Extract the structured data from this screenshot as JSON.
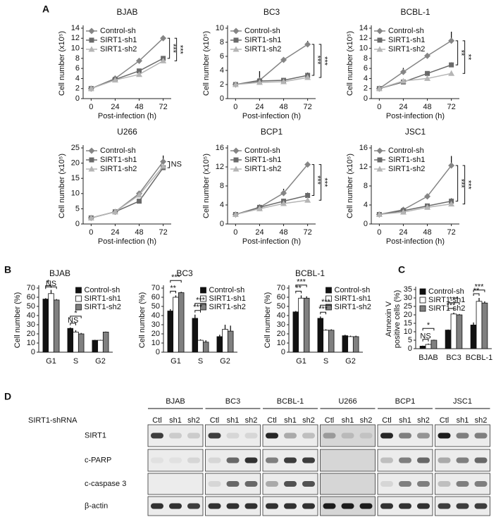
{
  "panel_labels": [
    "A",
    "B",
    "C",
    "D"
  ],
  "chart_data": [
    {
      "type": "line",
      "title": "BJAB",
      "xlabel": "Post-infection (h)",
      "ylabel": "Cell number (x10⁵)",
      "x": [
        0,
        24,
        48,
        72
      ],
      "xlim": [
        -8,
        80
      ],
      "xticks": [
        0,
        24,
        48,
        72
      ],
      "ylim": [
        0,
        14
      ],
      "yticks": [
        0,
        2,
        4,
        6,
        8,
        10,
        12,
        14
      ],
      "series": [
        {
          "name": "Control-sh",
          "color": "#858585",
          "marker": "diamond",
          "values": [
            2,
            4,
            7.5,
            12
          ],
          "errors": [
            0.1,
            0.4,
            0.3,
            0.4
          ]
        },
        {
          "name": "SIRT1-sh1",
          "color": "#6a6a6a",
          "marker": "square",
          "values": [
            2,
            3.8,
            5.5,
            8
          ],
          "errors": [
            0.1,
            0.3,
            0.4,
            0.3
          ]
        },
        {
          "name": "SIRT1-sh2",
          "color": "#b5b5b5",
          "marker": "triangle",
          "values": [
            2,
            3.7,
            4.8,
            7.5
          ],
          "errors": [
            0.1,
            0.2,
            0.3,
            0.3
          ]
        }
      ],
      "annotations": [
        "***",
        "***"
      ]
    },
    {
      "type": "line",
      "title": "BC3",
      "xlabel": "Post-infection (h)",
      "ylabel": "Cell number (x10⁵)",
      "x": [
        0,
        24,
        48,
        72
      ],
      "xlim": [
        -8,
        80
      ],
      "xticks": [
        0,
        24,
        48,
        72
      ],
      "ylim": [
        0,
        10
      ],
      "yticks": [
        0,
        2,
        4,
        6,
        8,
        10
      ],
      "series": [
        {
          "name": "Control-sh",
          "color": "#858585",
          "marker": "diamond",
          "values": [
            2,
            2.6,
            5.5,
            7.7
          ],
          "errors": [
            0.1,
            1.3,
            0.3,
            0.5
          ]
        },
        {
          "name": "SIRT1-sh1",
          "color": "#6a6a6a",
          "marker": "square",
          "values": [
            2,
            2.5,
            2.6,
            3.3
          ],
          "errors": [
            0.1,
            0.3,
            0.2,
            0.4
          ]
        },
        {
          "name": "SIRT1-sh2",
          "color": "#b5b5b5",
          "marker": "triangle",
          "values": [
            2,
            2.3,
            2.4,
            3
          ],
          "errors": [
            0.1,
            0.2,
            0.2,
            0.3
          ]
        }
      ],
      "annotations": [
        "***",
        "***"
      ]
    },
    {
      "type": "line",
      "title": "BCBL-1",
      "xlabel": "Post-infection (h)",
      "ylabel": "Cell number (x10⁵)",
      "x": [
        0,
        24,
        48,
        72
      ],
      "xlim": [
        -8,
        80
      ],
      "xticks": [
        0,
        24,
        48,
        72
      ],
      "ylim": [
        0,
        14
      ],
      "yticks": [
        0,
        2,
        4,
        6,
        8,
        10,
        12,
        14
      ],
      "series": [
        {
          "name": "Control-sh",
          "color": "#858585",
          "marker": "diamond",
          "values": [
            2,
            5.3,
            8.5,
            11.5
          ],
          "errors": [
            0.1,
            0.8,
            0.5,
            1.8
          ]
        },
        {
          "name": "SIRT1-sh1",
          "color": "#6a6a6a",
          "marker": "square",
          "values": [
            2,
            3.3,
            5,
            6.7
          ],
          "errors": [
            0.1,
            0.3,
            0.4,
            0.5
          ]
        },
        {
          "name": "SIRT1-sh2",
          "color": "#b5b5b5",
          "marker": "triangle",
          "values": [
            2,
            3.5,
            4,
            5
          ],
          "errors": [
            0.1,
            0.3,
            0.3,
            0.5
          ]
        }
      ],
      "annotations": [
        "**",
        "**"
      ]
    },
    {
      "type": "line",
      "title": "U266",
      "xlabel": "Post-infection (h)",
      "ylabel": "Cell number (x10⁵)",
      "x": [
        0,
        24,
        48,
        72
      ],
      "xlim": [
        -8,
        80
      ],
      "xticks": [
        0,
        24,
        48,
        72
      ],
      "ylim": [
        0,
        25
      ],
      "yticks": [
        0,
        5,
        10,
        15,
        20,
        25
      ],
      "series": [
        {
          "name": "Control-sh",
          "color": "#858585",
          "marker": "diamond",
          "values": [
            2,
            4,
            10,
            20.5
          ],
          "errors": [
            0.2,
            0.8,
            0.6,
            2
          ]
        },
        {
          "name": "SIRT1-sh1",
          "color": "#6a6a6a",
          "marker": "square",
          "values": [
            2,
            4,
            7.5,
            18.5
          ],
          "errors": [
            0.2,
            0.4,
            0.5,
            1
          ]
        },
        {
          "name": "SIRT1-sh2",
          "color": "#b5b5b5",
          "marker": "triangle",
          "values": [
            2,
            4,
            9.5,
            19
          ],
          "errors": [
            0.2,
            0.4,
            0.5,
            1
          ]
        }
      ],
      "annotations": [
        "NS"
      ]
    },
    {
      "type": "line",
      "title": "BCP1",
      "xlabel": "Post-infection (h)",
      "ylabel": "Cell number (x10⁵)",
      "x": [
        0,
        24,
        48,
        72
      ],
      "xlim": [
        -8,
        80
      ],
      "xticks": [
        0,
        24,
        48,
        72
      ],
      "ylim": [
        0,
        16
      ],
      "yticks": [
        0,
        4,
        8,
        12,
        16
      ],
      "series": [
        {
          "name": "Control-sh",
          "color": "#858585",
          "marker": "diamond",
          "values": [
            2,
            3.5,
            6.5,
            12.5
          ],
          "errors": [
            0.1,
            0.6,
            0.9,
            0.6
          ]
        },
        {
          "name": "SIRT1-sh1",
          "color": "#6a6a6a",
          "marker": "square",
          "values": [
            2,
            3.5,
            4.8,
            6
          ],
          "errors": [
            0.1,
            0.4,
            0.5,
            0.6
          ]
        },
        {
          "name": "SIRT1-sh2",
          "color": "#b5b5b5",
          "marker": "triangle",
          "values": [
            2,
            3.2,
            4.3,
            5
          ],
          "errors": [
            0.1,
            0.3,
            0.4,
            0.5
          ]
        }
      ],
      "annotations": [
        "***",
        "***"
      ]
    },
    {
      "type": "line",
      "title": "JSC1",
      "xlabel": "Post-infection (h)",
      "ylabel": "Cell number (x10⁵)",
      "x": [
        0,
        24,
        48,
        72
      ],
      "xlim": [
        -8,
        80
      ],
      "xticks": [
        0,
        24,
        48,
        72
      ],
      "ylim": [
        0,
        16
      ],
      "yticks": [
        0,
        4,
        8,
        12,
        16
      ],
      "series": [
        {
          "name": "Control-sh",
          "color": "#858585",
          "marker": "diamond",
          "values": [
            2,
            3,
            5.8,
            12.3
          ],
          "errors": [
            0.1,
            0.4,
            0.6,
            2
          ]
        },
        {
          "name": "SIRT1-sh1",
          "color": "#6a6a6a",
          "marker": "square",
          "values": [
            2,
            2.8,
            3.8,
            4.8
          ],
          "errors": [
            0.1,
            0.3,
            0.4,
            0.6
          ]
        },
        {
          "name": "SIRT1-sh2",
          "color": "#b5b5b5",
          "marker": "triangle",
          "values": [
            2,
            2.5,
            3.5,
            4.2
          ],
          "errors": [
            0.1,
            0.3,
            0.4,
            0.5
          ]
        }
      ],
      "annotations": [
        "***",
        "***"
      ]
    },
    {
      "type": "bar",
      "title": "BJAB",
      "ylabel": "Cell number (%)",
      "categories": [
        "G1",
        "S",
        "G2"
      ],
      "ylim": [
        0,
        70
      ],
      "yticks": [
        0,
        10,
        20,
        30,
        40,
        50,
        60,
        70
      ],
      "legend": "top-right",
      "series": [
        {
          "name": "Control-sh",
          "color": "#111111",
          "values": [
            58,
            26,
            13
          ],
          "errors": [
            1,
            1,
            0.5
          ]
        },
        {
          "name": "SIRT1-sh1",
          "color": "#ffffff",
          "values": [
            64,
            22,
            13
          ],
          "errors": [
            4,
            2,
            0.5
          ]
        },
        {
          "name": "SIRT1-sh2",
          "color": "#808080",
          "values": [
            57,
            20,
            22
          ],
          "errors": [
            1,
            1,
            0.5
          ]
        }
      ],
      "annotations": [
        "*",
        "NS",
        "NS",
        "*"
      ]
    },
    {
      "type": "bar",
      "title": "BC3",
      "ylabel": "Cell number (%)",
      "categories": [
        "G1",
        "S",
        "G2"
      ],
      "ylim": [
        0,
        70
      ],
      "yticks": [
        0,
        10,
        20,
        30,
        40,
        50,
        60,
        70
      ],
      "legend": "top-right",
      "series": [
        {
          "name": "Control-sh",
          "color": "#111111",
          "values": [
            45,
            37,
            17
          ],
          "errors": [
            2,
            4,
            2
          ]
        },
        {
          "name": "SIRT1-sh1",
          "color": "#ffffff",
          "values": [
            60,
            13,
            25
          ],
          "errors": [
            2,
            1,
            5
          ]
        },
        {
          "name": "SIRT1-sh2",
          "color": "#808080",
          "values": [
            65,
            11,
            23
          ],
          "errors": [
            1,
            2,
            6
          ]
        }
      ],
      "annotations": [
        "**",
        "***",
        "***",
        "***"
      ]
    },
    {
      "type": "bar",
      "title": "BCBL-1",
      "ylabel": "Cell number (%)",
      "categories": [
        "G1",
        "S",
        "G2"
      ],
      "ylim": [
        0,
        70
      ],
      "yticks": [
        0,
        10,
        20,
        30,
        40,
        50,
        60,
        70
      ],
      "legend": "top-right",
      "series": [
        {
          "name": "Control-sh",
          "color": "#111111",
          "values": [
            44,
            37,
            18
          ],
          "errors": [
            1,
            2,
            1
          ]
        },
        {
          "name": "SIRT1-sh1",
          "color": "#ffffff",
          "values": [
            59,
            24,
            17
          ],
          "errors": [
            3,
            1,
            1
          ]
        },
        {
          "name": "SIRT1-sh2",
          "color": "#808080",
          "values": [
            59,
            24,
            17
          ],
          "errors": [
            2,
            1,
            1
          ]
        }
      ],
      "annotations": [
        "**",
        "***",
        "***",
        "***"
      ]
    },
    {
      "type": "bar",
      "ylabel": [
        "Annexin V",
        "positive cells (%)"
      ],
      "categories": [
        "BJAB",
        "BC3",
        "BCBL-1"
      ],
      "ylim": [
        0,
        35
      ],
      "yticks": [
        0,
        5,
        10,
        15,
        20,
        25,
        30,
        35
      ],
      "legend": "top-left",
      "series": [
        {
          "name": "Control-sh",
          "color": "#111111",
          "values": [
            1.5,
            11,
            14
          ],
          "errors": [
            0.3,
            0.3,
            1.5
          ]
        },
        {
          "name": "SIRT1-sh1",
          "color": "#ffffff",
          "values": [
            2.5,
            20.5,
            28
          ],
          "errors": [
            0.5,
            0.8,
            2
          ]
        },
        {
          "name": "SIRT1-sh2",
          "color": "#808080",
          "values": [
            5,
            20,
            27
          ],
          "errors": [
            0.3,
            0.5,
            1
          ]
        }
      ],
      "annotations": [
        "NS",
        "*",
        "***",
        "***",
        "**",
        "***"
      ]
    }
  ],
  "blot": {
    "header_label": "SIRT1-shRNA",
    "cell_lines": [
      "BJAB",
      "BC3",
      "BCBL-1",
      "U266",
      "BCP1",
      "JSC1"
    ],
    "lanes": [
      "Ctl",
      "sh1",
      "sh2"
    ],
    "proteins": [
      "SIRT1",
      "c-PARP",
      "c-caspase 3",
      "β-actin"
    ]
  }
}
